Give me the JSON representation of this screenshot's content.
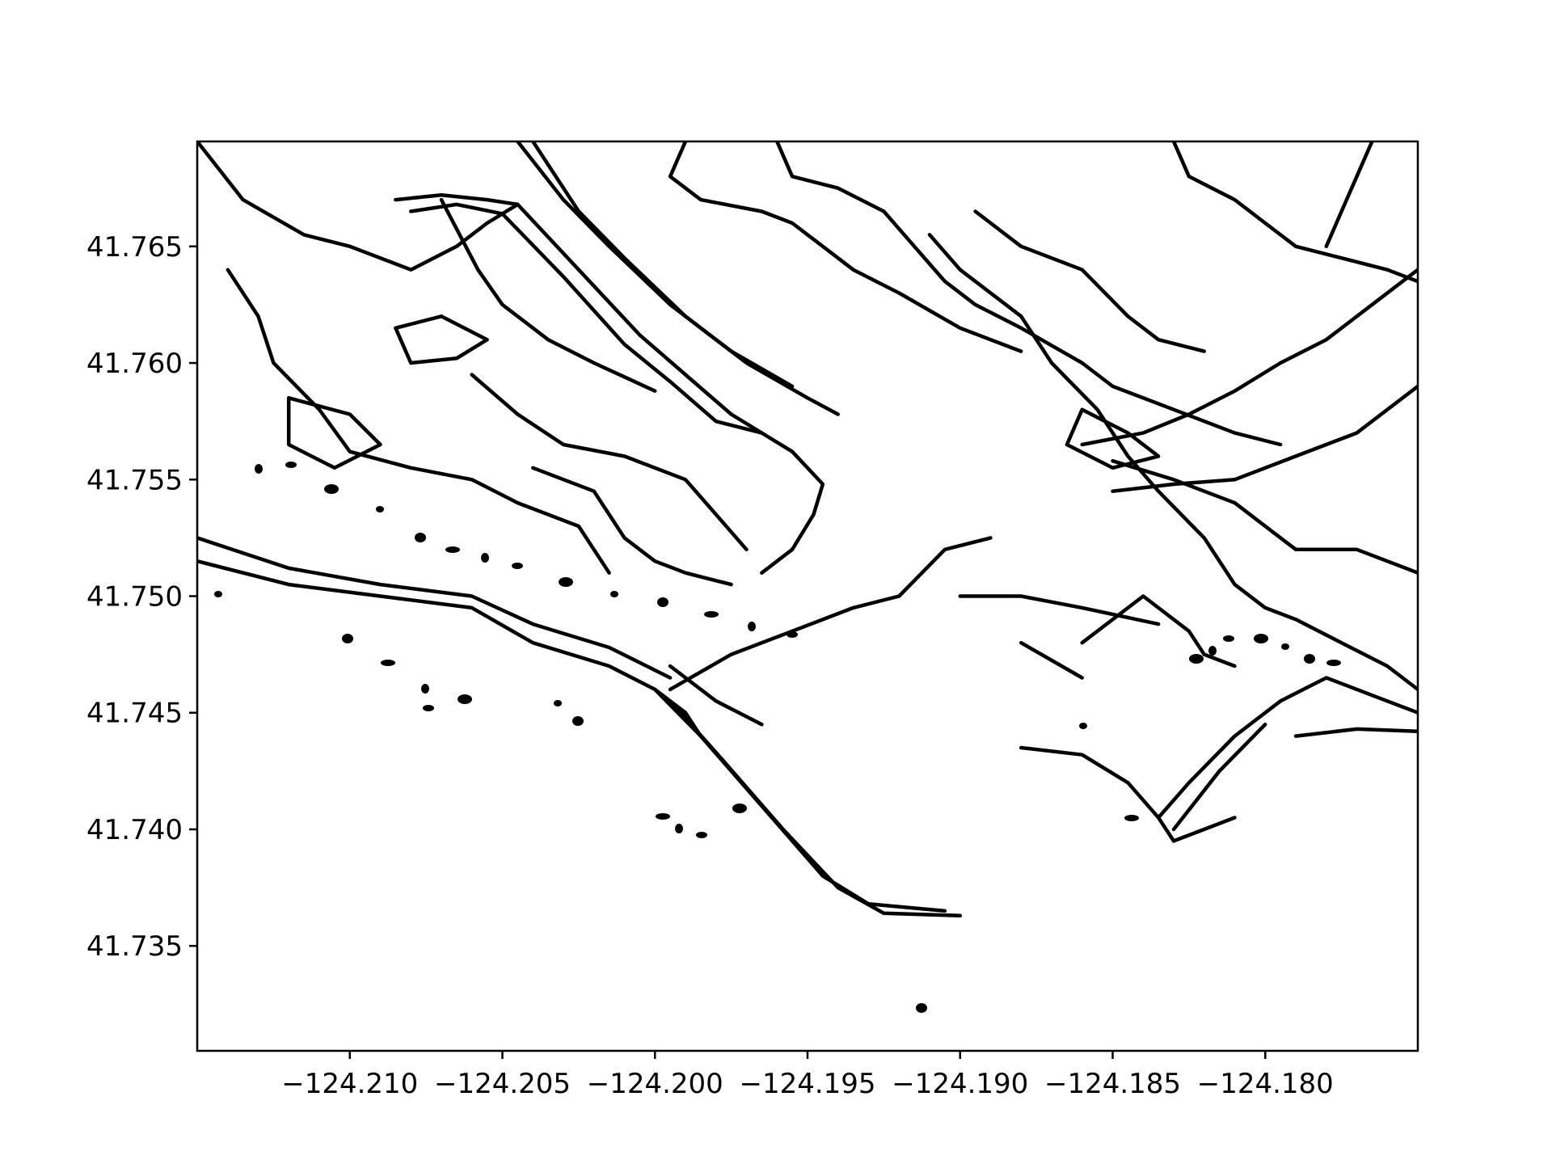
{
  "chart_data": {
    "type": "contour-map",
    "title": "",
    "xlabel": "",
    "ylabel": "",
    "xlim": [
      -124.215,
      -124.175
    ],
    "ylim": [
      41.7305,
      41.7695
    ],
    "grid": false,
    "legend": "none",
    "line_color": "#000000",
    "x_ticks": [
      -124.21,
      -124.205,
      -124.2,
      -124.195,
      -124.19,
      -124.185,
      -124.18
    ],
    "x_tick_labels": [
      "−124.210",
      "−124.205",
      "−124.200",
      "−124.195",
      "−124.190",
      "−124.185",
      "−124.180"
    ],
    "y_ticks": [
      41.735,
      41.74,
      41.745,
      41.75,
      41.755,
      41.76,
      41.765
    ],
    "y_tick_labels": [
      "41.735",
      "41.740",
      "41.745",
      "41.750",
      "41.755",
      "41.760",
      "41.765"
    ],
    "contours": [
      [
        [
          -124.215,
          41.7515
        ],
        [
          -124.212,
          41.7505
        ],
        [
          -124.209,
          41.75
        ],
        [
          -124.206,
          41.7495
        ],
        [
          -124.204,
          41.748
        ],
        [
          -124.2015,
          41.747
        ],
        [
          -124.2,
          41.746
        ],
        [
          -124.199,
          41.745
        ],
        [
          -124.1985,
          41.744
        ]
      ],
      [
        [
          -124.215,
          41.7525
        ],
        [
          -124.212,
          41.7512
        ],
        [
          -124.209,
          41.7505
        ],
        [
          -124.206,
          41.75
        ],
        [
          -124.204,
          41.7488
        ],
        [
          -124.2015,
          41.7478
        ],
        [
          -124.1995,
          41.7465
        ]
      ],
      [
        [
          -124.2,
          41.746
        ],
        [
          -124.1985,
          41.744
        ],
        [
          -124.1965,
          41.741
        ],
        [
          -124.1945,
          41.738
        ],
        [
          -124.193,
          41.7368
        ],
        [
          -124.1905,
          41.7365
        ]
      ],
      [
        [
          -124.1995,
          41.7455
        ],
        [
          -124.1978,
          41.743
        ],
        [
          -124.1958,
          41.74
        ],
        [
          -124.194,
          41.7375
        ],
        [
          -124.1925,
          41.7364
        ],
        [
          -124.19,
          41.7363
        ]
      ],
      [
        [
          -124.1995,
          41.746
        ],
        [
          -124.1975,
          41.7475
        ],
        [
          -124.1955,
          41.7485
        ],
        [
          -124.1935,
          41.7495
        ],
        [
          -124.192,
          41.75
        ]
      ],
      [
        [
          -124.1995,
          41.747
        ],
        [
          -124.198,
          41.7455
        ],
        [
          -124.1965,
          41.7445
        ]
      ],
      [
        [
          -124.192,
          41.75
        ],
        [
          -124.1905,
          41.752
        ],
        [
          -124.189,
          41.7525
        ]
      ],
      [
        [
          -124.19,
          41.75
        ],
        [
          -124.188,
          41.75
        ],
        [
          -124.186,
          41.7495
        ],
        [
          -124.1835,
          41.7488
        ]
      ],
      [
        [
          -124.188,
          41.7435
        ],
        [
          -124.186,
          41.7432
        ],
        [
          -124.1845,
          41.742
        ],
        [
          -124.1835,
          41.7405
        ],
        [
          -124.183,
          41.7395
        ],
        [
          -124.182,
          41.74
        ],
        [
          -124.181,
          41.7405
        ]
      ],
      [
        [
          -124.186,
          41.748
        ],
        [
          -124.184,
          41.75
        ],
        [
          -124.1825,
          41.7485
        ],
        [
          -124.182,
          41.7475
        ],
        [
          -124.181,
          41.747
        ]
      ],
      [
        [
          -124.188,
          41.748
        ],
        [
          -124.186,
          41.7465
        ]
      ],
      [
        [
          -124.1835,
          41.7405
        ],
        [
          -124.1825,
          41.742
        ],
        [
          -124.181,
          41.744
        ],
        [
          -124.1795,
          41.7455
        ],
        [
          -124.178,
          41.7465
        ],
        [
          -124.176,
          41.7455
        ],
        [
          -124.175,
          41.745
        ]
      ],
      [
        [
          -124.179,
          41.744
        ],
        [
          -124.177,
          41.7443
        ],
        [
          -124.175,
          41.7442
        ]
      ],
      [
        [
          -124.183,
          41.74
        ],
        [
          -124.1815,
          41.7425
        ],
        [
          -124.18,
          41.7445
        ]
      ],
      [
        [
          -124.215,
          41.7695
        ],
        [
          -124.2135,
          41.767
        ],
        [
          -124.2115,
          41.7655
        ],
        [
          -124.21,
          41.765
        ],
        [
          -124.208,
          41.764
        ],
        [
          -124.2065,
          41.765
        ],
        [
          -124.2055,
          41.766
        ],
        [
          -124.2045,
          41.7668
        ]
      ],
      [
        [
          -124.2085,
          41.767
        ],
        [
          -124.207,
          41.7672
        ],
        [
          -124.2055,
          41.767
        ],
        [
          -124.2045,
          41.7668
        ],
        [
          -124.2025,
          41.764
        ],
        [
          -124.2005,
          41.7612
        ],
        [
          -124.199,
          41.7595
        ],
        [
          -124.1975,
          41.7578
        ]
      ],
      [
        [
          -124.208,
          41.7665
        ],
        [
          -124.2065,
          41.7668
        ],
        [
          -124.205,
          41.7664
        ],
        [
          -124.203,
          41.7637
        ],
        [
          -124.201,
          41.7608
        ],
        [
          -124.1995,
          41.7592
        ],
        [
          -124.198,
          41.7575
        ],
        [
          -124.1965,
          41.757
        ]
      ],
      [
        [
          -124.204,
          41.7695
        ],
        [
          -124.2025,
          41.7665
        ],
        [
          -124.201,
          41.7645
        ],
        [
          -124.199,
          41.762
        ],
        [
          -124.197,
          41.76
        ],
        [
          -124.195,
          41.7585
        ],
        [
          -124.194,
          41.7578
        ]
      ],
      [
        [
          -124.2045,
          41.7695
        ],
        [
          -124.203,
          41.767
        ],
        [
          -124.2015,
          41.765
        ],
        [
          -124.1995,
          41.7625
        ],
        [
          -124.1975,
          41.7605
        ],
        [
          -124.1955,
          41.759
        ]
      ],
      [
        [
          -124.1975,
          41.7578
        ],
        [
          -124.1955,
          41.7562
        ],
        [
          -124.1945,
          41.7548
        ],
        [
          -124.1948,
          41.7535
        ],
        [
          -124.1955,
          41.752
        ],
        [
          -124.1965,
          41.751
        ]
      ],
      [
        [
          -124.214,
          41.764
        ],
        [
          -124.213,
          41.762
        ],
        [
          -124.2125,
          41.76
        ],
        [
          -124.211,
          41.758
        ],
        [
          -124.21,
          41.7562
        ],
        [
          -124.208,
          41.7555
        ],
        [
          -124.206,
          41.755
        ],
        [
          -124.2045,
          41.754
        ],
        [
          -124.2025,
          41.753
        ],
        [
          -124.2015,
          41.751
        ]
      ],
      [
        [
          -124.206,
          41.7595
        ],
        [
          -124.2045,
          41.7578
        ],
        [
          -124.203,
          41.7565
        ],
        [
          -124.201,
          41.756
        ],
        [
          -124.199,
          41.755
        ],
        [
          -124.198,
          41.7535
        ],
        [
          -124.197,
          41.752
        ]
      ],
      [
        [
          -124.204,
          41.7555
        ],
        [
          -124.202,
          41.7545
        ],
        [
          -124.201,
          41.7525
        ],
        [
          -124.2,
          41.7515
        ],
        [
          -124.199,
          41.751
        ],
        [
          -124.1975,
          41.7505
        ]
      ],
      [
        [
          -124.207,
          41.767
        ],
        [
          -124.2058,
          41.764
        ],
        [
          -124.205,
          41.7625
        ],
        [
          -124.2035,
          41.761
        ],
        [
          -124.202,
          41.76
        ],
        [
          -124.2,
          41.7588
        ]
      ],
      [
        [
          -124.199,
          41.7695
        ],
        [
          -124.1995,
          41.768
        ],
        [
          -124.1985,
          41.767
        ],
        [
          -124.1965,
          41.7665
        ],
        [
          -124.1955,
          41.766
        ],
        [
          -124.1945,
          41.765
        ],
        [
          -124.1935,
          41.764
        ],
        [
          -124.192,
          41.763
        ],
        [
          -124.19,
          41.7615
        ],
        [
          -124.188,
          41.7605
        ]
      ],
      [
        [
          -124.196,
          41.7695
        ],
        [
          -124.1955,
          41.768
        ],
        [
          -124.194,
          41.7675
        ],
        [
          -124.1925,
          41.7665
        ],
        [
          -124.1915,
          41.765
        ],
        [
          -124.1905,
          41.7635
        ],
        [
          -124.1895,
          41.7625
        ],
        [
          -124.188,
          41.7615
        ],
        [
          -124.186,
          41.76
        ],
        [
          -124.185,
          41.759
        ],
        [
          -124.183,
          41.758
        ],
        [
          -124.181,
          41.757
        ],
        [
          -124.1795,
          41.7565
        ]
      ],
      [
        [
          -124.1895,
          41.7665
        ],
        [
          -124.188,
          41.765
        ],
        [
          -124.186,
          41.764
        ],
        [
          -124.1845,
          41.762
        ],
        [
          -124.1835,
          41.761
        ],
        [
          -124.182,
          41.7605
        ]
      ],
      [
        [
          -124.191,
          41.7655
        ],
        [
          -124.19,
          41.764
        ],
        [
          -124.188,
          41.762
        ],
        [
          -124.187,
          41.76
        ],
        [
          -124.1855,
          41.758
        ],
        [
          -124.1845,
          41.756
        ],
        [
          -124.1835,
          41.7545
        ],
        [
          -124.182,
          41.7525
        ],
        [
          -124.181,
          41.7505
        ],
        [
          -124.18,
          41.7495
        ],
        [
          -124.179,
          41.749
        ],
        [
          -124.1775,
          41.748
        ],
        [
          -124.176,
          41.747
        ],
        [
          -124.175,
          41.746
        ]
      ],
      [
        [
          -124.185,
          41.7558
        ],
        [
          -124.183,
          41.755
        ],
        [
          -124.181,
          41.754
        ],
        [
          -124.179,
          41.752
        ],
        [
          -124.177,
          41.752
        ],
        [
          -124.175,
          41.751
        ]
      ],
      [
        [
          -124.175,
          41.759
        ],
        [
          -124.177,
          41.757
        ],
        [
          -124.179,
          41.756
        ],
        [
          -124.181,
          41.755
        ],
        [
          -124.183,
          41.7548
        ],
        [
          -124.185,
          41.7545
        ]
      ],
      [
        [
          -124.175,
          41.764
        ],
        [
          -124.1765,
          41.7625
        ],
        [
          -124.178,
          41.761
        ],
        [
          -124.1795,
          41.76
        ],
        [
          -124.181,
          41.7588
        ],
        [
          -124.1825,
          41.7578
        ],
        [
          -124.184,
          41.757
        ],
        [
          -124.186,
          41.7565
        ]
      ],
      [
        [
          -124.183,
          41.7695
        ],
        [
          -124.1825,
          41.768
        ],
        [
          -124.181,
          41.767
        ],
        [
          -124.18,
          41.766
        ],
        [
          -124.179,
          41.765
        ],
        [
          -124.1775,
          41.7645
        ],
        [
          -124.176,
          41.764
        ],
        [
          -124.175,
          41.7635
        ]
      ],
      [
        [
          -124.1765,
          41.7695
        ],
        [
          -124.177,
          41.768
        ],
        [
          -124.1775,
          41.7665
        ],
        [
          -124.178,
          41.765
        ]
      ],
      [
        [
          -124.212,
          41.7585
        ],
        [
          -124.21,
          41.7578
        ],
        [
          -124.209,
          41.7565
        ],
        [
          -124.2105,
          41.7555
        ],
        [
          -124.212,
          41.7565
        ],
        [
          -124.212,
          41.7585
        ]
      ],
      [
        [
          -124.208,
          41.76
        ],
        [
          -124.2065,
          41.7602
        ],
        [
          -124.2055,
          41.761
        ],
        [
          -124.207,
          41.762
        ],
        [
          -124.2085,
          41.7615
        ],
        [
          -124.208,
          41.76
        ]
      ],
      [
        [
          -124.186,
          41.758
        ],
        [
          -124.1845,
          41.757
        ],
        [
          -124.1835,
          41.756
        ],
        [
          -124.185,
          41.7555
        ],
        [
          -124.1865,
          41.7565
        ],
        [
          -124.186,
          41.758
        ]
      ]
    ]
  }
}
